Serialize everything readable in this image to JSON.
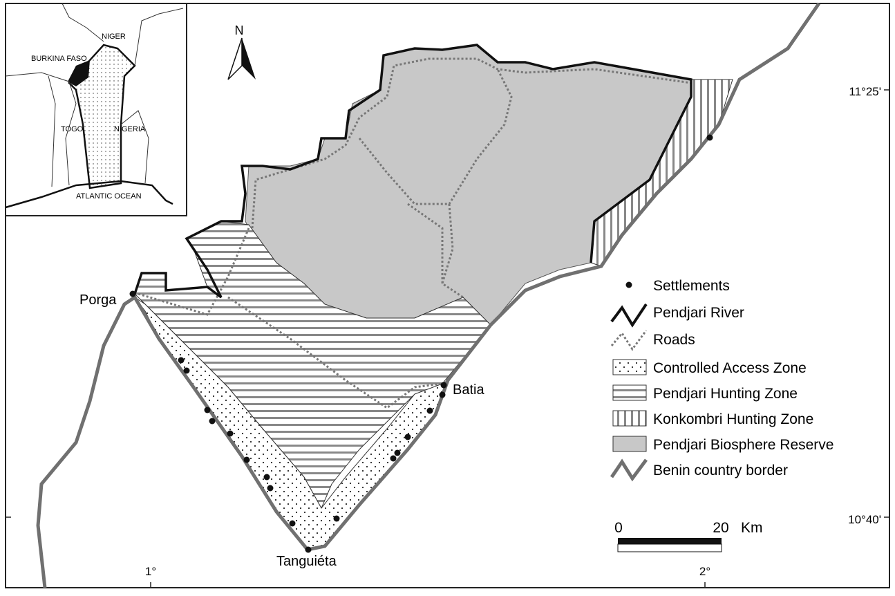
{
  "north_label": "N",
  "places": {
    "porga": "Porga",
    "batia": "Batia",
    "tanguieta": "Tanguiéta"
  },
  "coordinates": {
    "lat_north": "11°25'",
    "lat_south": "10°40'",
    "lon_west": "1°",
    "lon_east": "2°"
  },
  "inset": {
    "niger": "NIGER",
    "burkina_faso": "BURKINA FASO",
    "togo": "TOGO",
    "nigeria": "NIGERIA",
    "ocean": "ATLANTIC OCEAN"
  },
  "legend": [
    "Settlements",
    "Pendjari River",
    "Roads",
    "Controlled Access Zone",
    "Pendjari Hunting Zone",
    "Konkombri Hunting Zone",
    "Pendjari Biosphere Reserve",
    "Benin country border"
  ],
  "scale_bar": {
    "start": "0",
    "end": "20",
    "unit": "Km"
  }
}
